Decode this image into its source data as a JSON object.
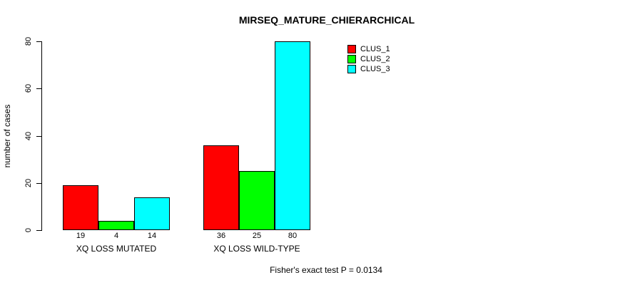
{
  "chart_data": {
    "type": "bar",
    "title": "MIRSEQ_MATURE_CHIERARCHICAL",
    "ylabel": "number of cases",
    "xlabel": "",
    "categories": [
      "XQ LOSS MUTATED",
      "XQ LOSS WILD-TYPE"
    ],
    "series": [
      {
        "name": "CLUS_1",
        "color": "#ff0000",
        "values": [
          19,
          36
        ]
      },
      {
        "name": "CLUS_2",
        "color": "#00ff00",
        "values": [
          4,
          25
        ]
      },
      {
        "name": "CLUS_3",
        "color": "#00ffff",
        "values": [
          14,
          80
        ]
      }
    ],
    "bar_value_labels": [
      [
        19,
        4,
        14
      ],
      [
        36,
        25,
        80
      ]
    ],
    "ylim": [
      0,
      80
    ],
    "yticks": [
      0,
      20,
      40,
      60,
      80
    ],
    "grid": false,
    "legend_position": "top-right",
    "footnote": "Fisher's exact test P = 0.0134",
    "background_color": "#ffffff",
    "axis_color": "#000000"
  }
}
